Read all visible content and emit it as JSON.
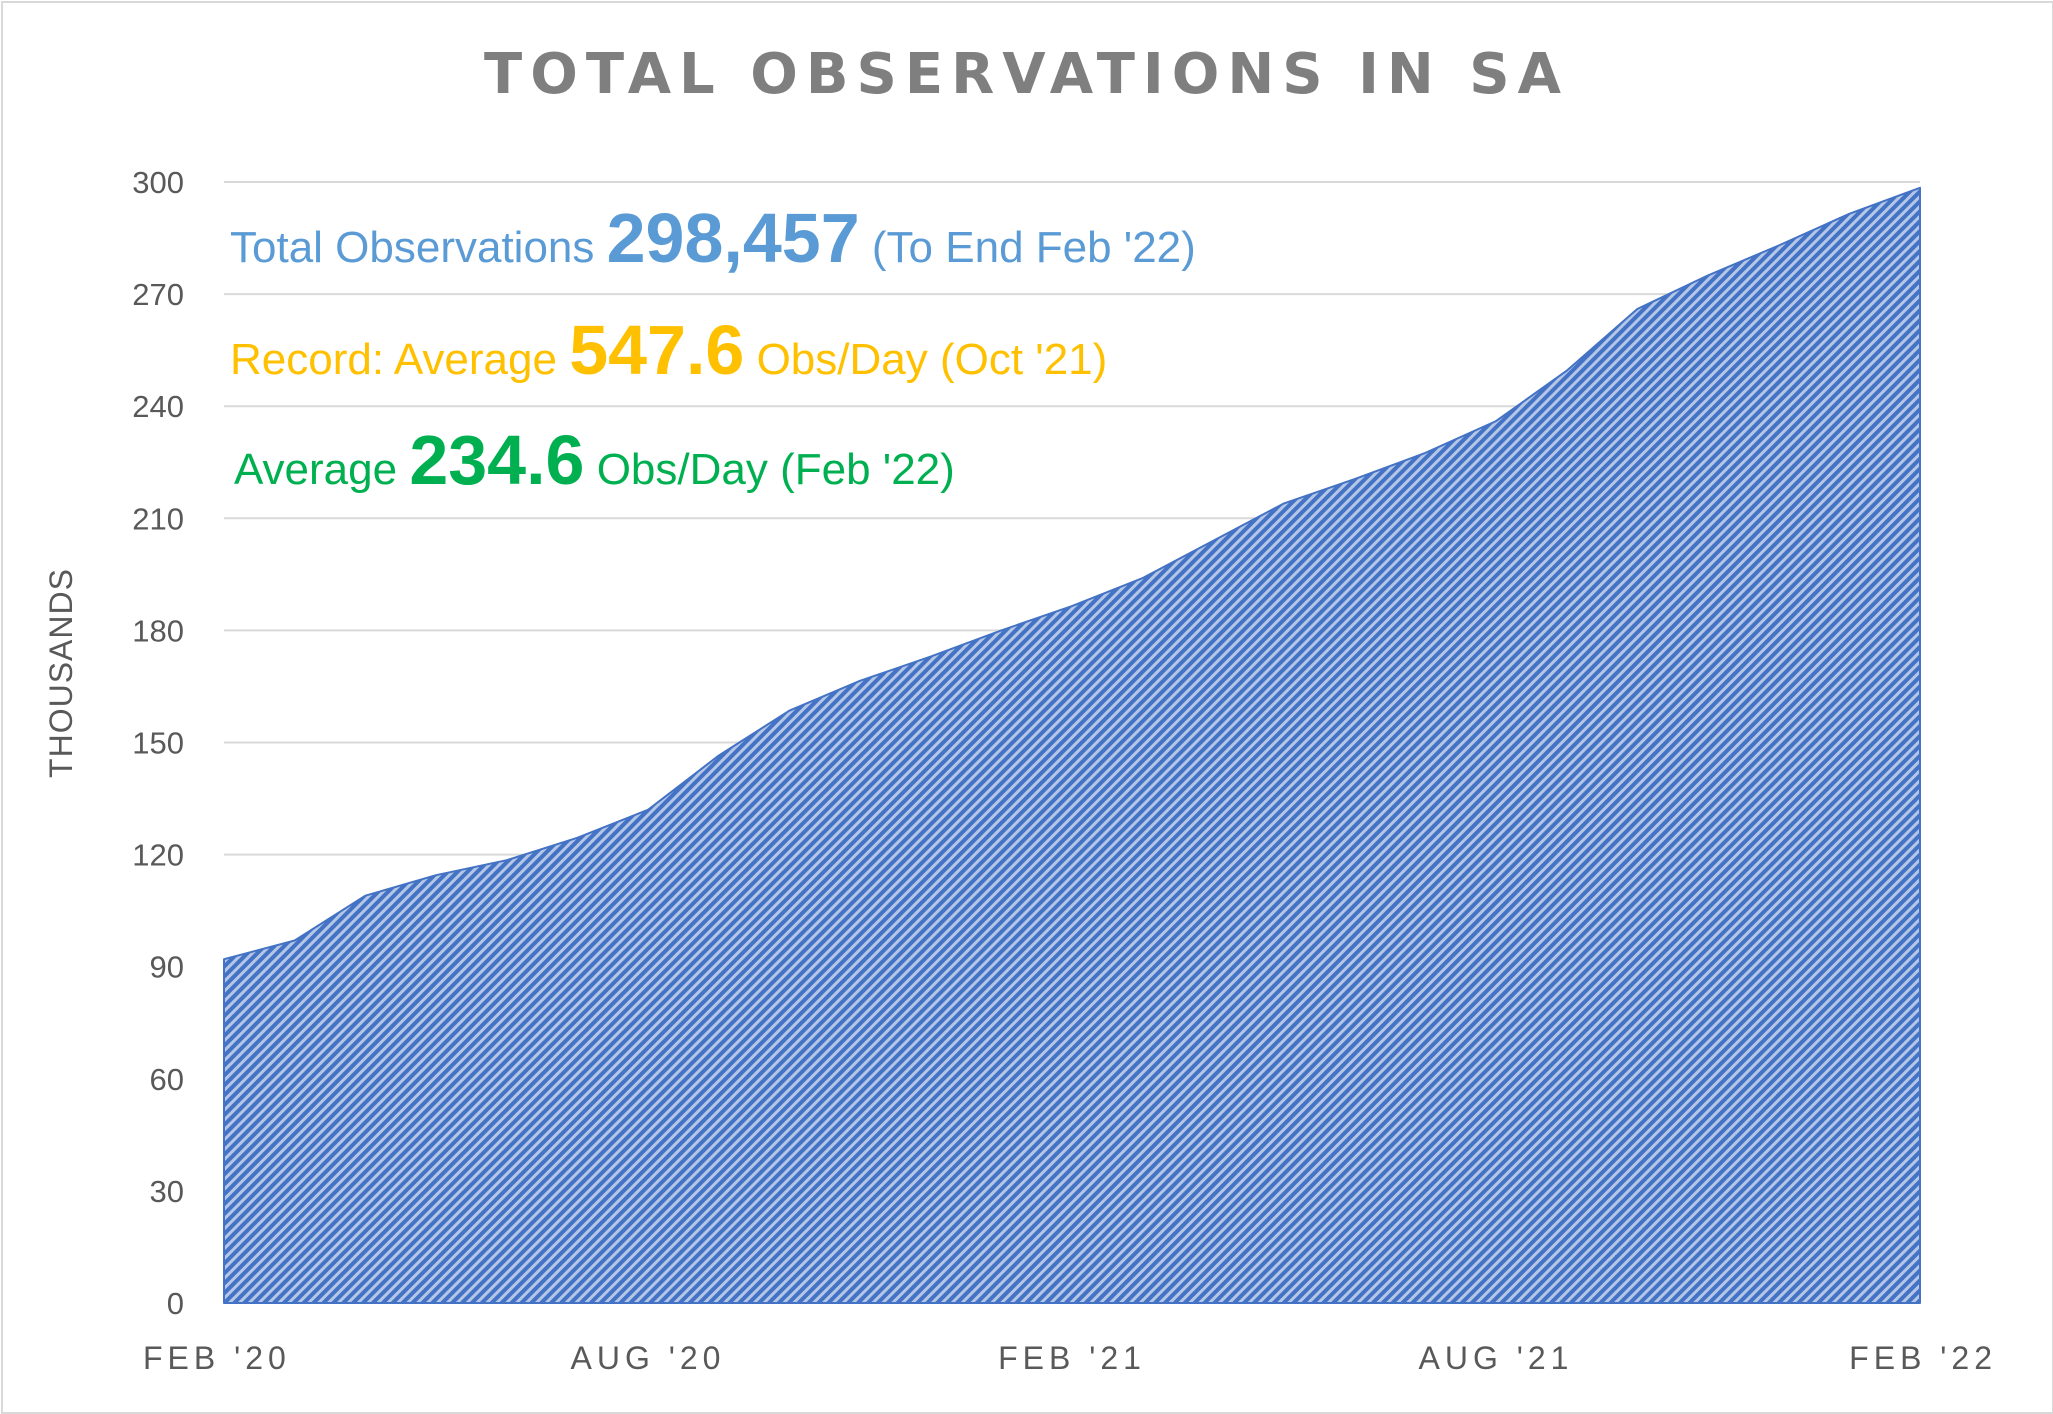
{
  "chart_data": {
    "type": "area",
    "title": "TOTAL OBSERVATIONS IN SA",
    "ylabel": "THOUSANDS",
    "xlabel": "",
    "ylim": [
      0,
      300
    ],
    "yticks": [
      "0",
      "30",
      "60",
      "90",
      "120",
      "150",
      "180",
      "210",
      "240",
      "270",
      "300"
    ],
    "xtick_labels": [
      "FEB '20",
      "AUG '20",
      "FEB '21",
      "AUG '21",
      "FEB '22"
    ],
    "grid": true,
    "legend": "none",
    "x": [
      "Feb '20",
      "Mar '20",
      "Apr '20",
      "May '20",
      "Jun '20",
      "Jul '20",
      "Aug '20",
      "Sep '20",
      "Oct '20",
      "Nov '20",
      "Dec '20",
      "Jan '21",
      "Feb '21",
      "Mar '21",
      "Apr '21",
      "May '21",
      "Jun '21",
      "Jul '21",
      "Aug '21",
      "Sep '21",
      "Oct '21",
      "Nov '21",
      "Dec '21",
      "Jan '22",
      "Feb '22"
    ],
    "series": [
      {
        "values": [
          92,
          97,
          109,
          114.5,
          118.5,
          124.5,
          132,
          146.5,
          158.5,
          166.5,
          173,
          180,
          186.5,
          194,
          204,
          214,
          220.5,
          227.5,
          236,
          249.5,
          266,
          275,
          283,
          291.5,
          298.457
        ]
      }
    ],
    "fill_color": "#4472c4",
    "fill_pattern": "diagonal-stripes"
  },
  "annotations": {
    "total": {
      "prefix": "Total Observations ",
      "value": "298,457",
      "suffix": " (To End Feb '22)",
      "color": "#5b9bd5"
    },
    "record": {
      "prefix": "Record: Average ",
      "value": "547.6",
      "suffix": " Obs/Day (Oct '21)",
      "color": "#ffc000"
    },
    "average": {
      "prefix": "Average ",
      "value": "234.6",
      "suffix": " Obs/Day (Feb '22)",
      "color": "#00b050"
    }
  }
}
